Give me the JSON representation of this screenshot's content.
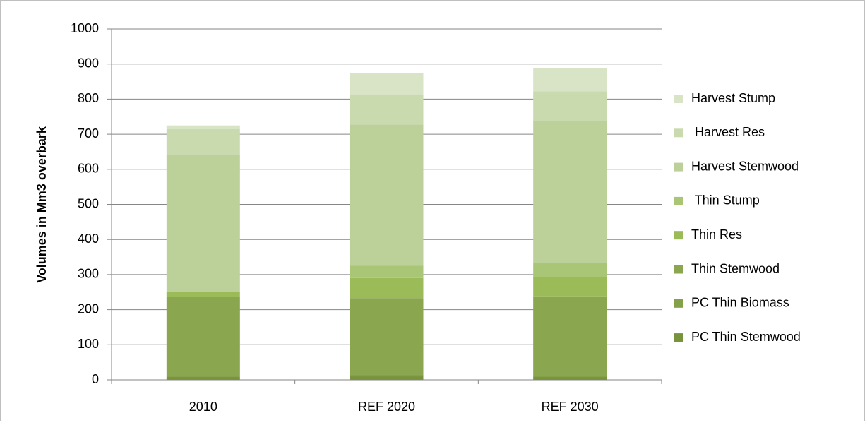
{
  "chart_data": {
    "type": "stacked_bar",
    "y_label": "Volumes in Mm3 overbark",
    "categories": [
      "2010",
      "REF 2020",
      "REF 2030"
    ],
    "series": [
      {
        "name": "PC Thin Stemwood",
        "color": "#77933c",
        "values": [
          8,
          10,
          8
        ]
      },
      {
        "name": "PC Thin Biomass",
        "color": "#84a048",
        "values": [
          2,
          5,
          5
        ]
      },
      {
        "name": "Thin Stemwood",
        "color": "#8aa64f",
        "values": [
          226,
          218,
          225
        ]
      },
      {
        "name": "Thin Res",
        "color": "#9bbb59",
        "values": [
          14,
          57,
          57
        ]
      },
      {
        "name": " Thin Stump",
        "color": "#a9c677",
        "values": [
          0,
          35,
          37
        ]
      },
      {
        "name": "Harvest Stemwood",
        "color": "#bcd19a",
        "values": [
          390,
          403,
          405
        ]
      },
      {
        "name": " Harvest Res",
        "color": "#c9daae",
        "values": [
          75,
          84,
          85
        ]
      },
      {
        "name": "Harvest Stump",
        "color": "#d9e4c6",
        "values": [
          10,
          63,
          66
        ]
      }
    ],
    "ylim": [
      0,
      1000
    ],
    "yticks": [
      0,
      100,
      200,
      300,
      400,
      500,
      600,
      700,
      800,
      900,
      1000
    ],
    "grid": true,
    "legend": "right"
  }
}
